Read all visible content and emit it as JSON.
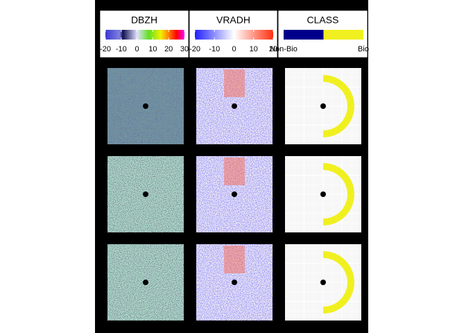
{
  "legends": [
    {
      "title": "DBZH",
      "ticks": [
        -20,
        -10,
        0,
        10,
        20,
        30
      ]
    },
    {
      "title": "VRADH",
      "ticks": [
        -20,
        -10,
        0,
        10,
        20
      ]
    },
    {
      "title": "CLASS",
      "labels": [
        "Non-Bio",
        "Bio"
      ]
    }
  ]
}
